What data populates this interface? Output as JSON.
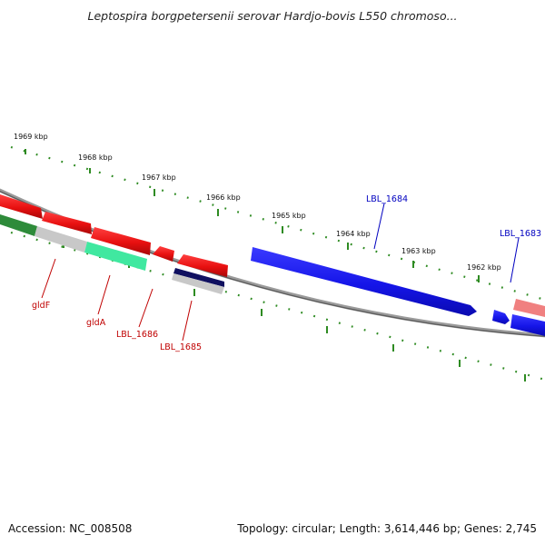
{
  "title": "Leptospira borgpetersenii serovar Hardjo-bovis L550 chromoso...",
  "footer": {
    "accession": "Accession: NC_008508",
    "summary": "Topology: circular; Length: 3,614,446 bp; Genes: 2,745"
  },
  "ruler_labels": [
    "1969 kbp",
    "1968 kbp",
    "1967 kbp",
    "1966 kbp",
    "1965 kbp",
    "1964 kbp",
    "1963 kbp",
    "1962 kbp"
  ],
  "gene_labels": {
    "blue": [
      "LBL_1684",
      "LBL_1683"
    ],
    "red": [
      "gldF",
      "gldA",
      "LBL_1686",
      "LBL_1685"
    ]
  },
  "colors": {
    "ruler": "#2e8b22",
    "backbone": "#777777",
    "forward_gene": "#1515e8",
    "reverse_gene": "#e81010",
    "pink_gene": "#f08080",
    "teal_gene": "#40e8a0",
    "green_gene": "#2e8b3a",
    "gray_gene": "#c8c8c8",
    "navy_gene": "#101060",
    "label_blue": "#0000c0",
    "label_red": "#c00000"
  }
}
